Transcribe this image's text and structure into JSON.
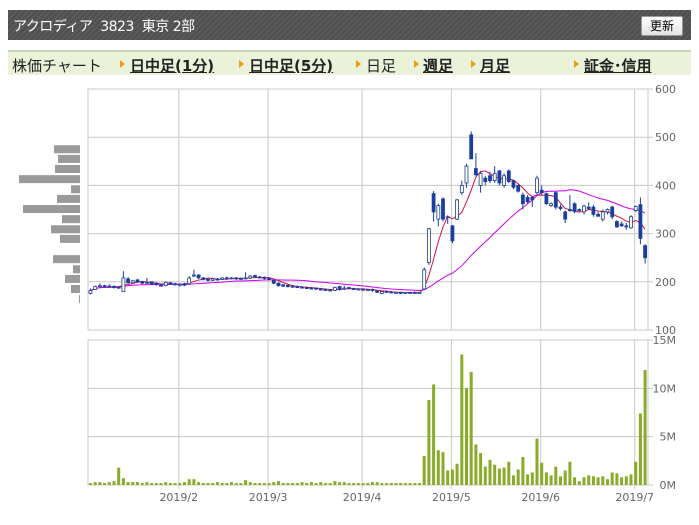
{
  "header": {
    "title": "アクロディア  3823  東京 2部",
    "refresh_label": "更新"
  },
  "nav": {
    "label": "株価チャート",
    "items": [
      {
        "label": "日中足(1分)",
        "link": true
      },
      {
        "label": "日中足(5分)",
        "link": true
      },
      {
        "label": "日足",
        "link": false
      },
      {
        "label": "週足",
        "link": true
      },
      {
        "label": "月足",
        "link": true
      },
      {
        "label": "証金･信用",
        "link": true
      }
    ]
  },
  "chart_data": {
    "type": "candlestick",
    "colors": {
      "candle": "#1a3f9e",
      "ma_short": "#e0103c",
      "ma_long": "#cc00ee",
      "volume": "#8aab2a",
      "grid": "#c8c8c8",
      "profile": "#9a9a9a"
    },
    "price_axis": {
      "min": 100,
      "max": 600,
      "ticks": [
        100,
        200,
        300,
        400,
        500,
        600
      ]
    },
    "volume_axis": {
      "min": 0,
      "max": 15,
      "ticks": [
        {
          "v": 0,
          "label": "0M"
        },
        {
          "v": 5,
          "label": "5M"
        },
        {
          "v": 10,
          "label": "10M"
        },
        {
          "v": 15,
          "label": "15M"
        }
      ]
    },
    "x_ticks": [
      {
        "label": "2019/2",
        "index": 19
      },
      {
        "label": "2019/3",
        "index": 38
      },
      {
        "label": "2019/4",
        "index": 58
      },
      {
        "label": "2019/5",
        "index": 77
      },
      {
        "label": "2019/6",
        "index": 96
      },
      {
        "label": "2019/7",
        "index": 116
      }
    ],
    "moving_averages": [
      {
        "period": 5,
        "color": "ma_short"
      },
      {
        "period": 25,
        "color": "ma_long"
      }
    ],
    "candles": [
      [
        176,
        186,
        174,
        182
      ],
      [
        184,
        192,
        183,
        190
      ],
      [
        190,
        197,
        188,
        192
      ],
      [
        192,
        194,
        188,
        190
      ],
      [
        191,
        195,
        188,
        190
      ],
      [
        190,
        193,
        186,
        189
      ],
      [
        189,
        191,
        185,
        187
      ],
      [
        180,
        222,
        180,
        208
      ],
      [
        206,
        210,
        196,
        198
      ],
      [
        198,
        204,
        196,
        202
      ],
      [
        204,
        206,
        198,
        200
      ],
      [
        200,
        202,
        195,
        197
      ],
      [
        199,
        208,
        196,
        198
      ],
      [
        200,
        201,
        194,
        195
      ],
      [
        197,
        199,
        192,
        195
      ],
      [
        193,
        196,
        190,
        192
      ],
      [
        192,
        201,
        191,
        199
      ],
      [
        198,
        200,
        194,
        196
      ],
      [
        196,
        198,
        192,
        194
      ],
      [
        193,
        197,
        190,
        195
      ],
      [
        196,
        198,
        191,
        193
      ],
      [
        196,
        212,
        194,
        208
      ],
      [
        212,
        225,
        210,
        214
      ],
      [
        214,
        216,
        206,
        208
      ],
      [
        208,
        210,
        203,
        205
      ],
      [
        205,
        207,
        201,
        203
      ],
      [
        203,
        208,
        202,
        206
      ],
      [
        206,
        208,
        202,
        205
      ],
      [
        205,
        210,
        204,
        208
      ],
      [
        208,
        211,
        204,
        207
      ],
      [
        207,
        210,
        205,
        208
      ],
      [
        208,
        210,
        204,
        207
      ],
      [
        207,
        209,
        204,
        206
      ],
      [
        206,
        220,
        205,
        208
      ],
      [
        208,
        214,
        206,
        212
      ],
      [
        213,
        215,
        208,
        210
      ],
      [
        210,
        212,
        207,
        209
      ],
      [
        209,
        211,
        205,
        208
      ],
      [
        207,
        209,
        203,
        205
      ],
      [
        203,
        204,
        195,
        197
      ],
      [
        197,
        199,
        190,
        192
      ],
      [
        194,
        195,
        189,
        191
      ],
      [
        193,
        194,
        188,
        190
      ],
      [
        191,
        193,
        187,
        190
      ],
      [
        190,
        192,
        187,
        189
      ],
      [
        189,
        191,
        186,
        188
      ],
      [
        188,
        190,
        185,
        187
      ],
      [
        187,
        189,
        184,
        186
      ],
      [
        187,
        188,
        183,
        185
      ],
      [
        185,
        187,
        182,
        184
      ],
      [
        184,
        186,
        181,
        183
      ],
      [
        183,
        185,
        180,
        182
      ],
      [
        182,
        190,
        181,
        188
      ],
      [
        190,
        192,
        182,
        184
      ],
      [
        185,
        192,
        183,
        187
      ],
      [
        188,
        190,
        185,
        186
      ],
      [
        186,
        188,
        184,
        185
      ],
      [
        185,
        187,
        183,
        185
      ],
      [
        185,
        186,
        181,
        183
      ],
      [
        183,
        185,
        181,
        184
      ],
      [
        184,
        186,
        180,
        182
      ],
      [
        181,
        183,
        177,
        178
      ],
      [
        176,
        182,
        175,
        180
      ],
      [
        180,
        182,
        178,
        179
      ],
      [
        179,
        181,
        176,
        177
      ],
      [
        178,
        180,
        176,
        178
      ],
      [
        178,
        179,
        175,
        177
      ],
      [
        176,
        179,
        175,
        178
      ],
      [
        178,
        179,
        176,
        177
      ],
      [
        178,
        180,
        176,
        177
      ],
      [
        177,
        179,
        175,
        178
      ],
      [
        185,
        230,
        183,
        225
      ],
      [
        240,
        312,
        235,
        310
      ],
      [
        383,
        388,
        325,
        345
      ],
      [
        330,
        362,
        315,
        358
      ],
      [
        372,
        375,
        325,
        330
      ],
      [
        333,
        338,
        320,
        335
      ],
      [
        316,
        318,
        280,
        285
      ],
      [
        330,
        372,
        328,
        370
      ],
      [
        385,
        410,
        380,
        400
      ],
      [
        405,
        445,
        395,
        440
      ],
      [
        505,
        512,
        455,
        455
      ],
      [
        435,
        467,
        420,
        422
      ],
      [
        400,
        430,
        385,
        425
      ],
      [
        415,
        420,
        400,
        408
      ],
      [
        420,
        428,
        405,
        410
      ],
      [
        410,
        440,
        405,
        425
      ],
      [
        430,
        432,
        400,
        405
      ],
      [
        400,
        425,
        395,
        420
      ],
      [
        430,
        433,
        405,
        408
      ],
      [
        410,
        412,
        392,
        396
      ],
      [
        400,
        402,
        385,
        388
      ],
      [
        380,
        385,
        350,
        362
      ],
      [
        375,
        380,
        362,
        366
      ],
      [
        375,
        378,
        355,
        370
      ],
      [
        385,
        420,
        380,
        415
      ],
      [
        390,
        400,
        380,
        385
      ],
      [
        383,
        385,
        360,
        362
      ],
      [
        358,
        365,
        355,
        362
      ],
      [
        385,
        388,
        350,
        355
      ],
      [
        355,
        360,
        348,
        352
      ],
      [
        345,
        348,
        322,
        330
      ],
      [
        350,
        380,
        345,
        348
      ],
      [
        362,
        365,
        342,
        346
      ],
      [
        350,
        352,
        344,
        348
      ],
      [
        345,
        360,
        340,
        357
      ],
      [
        355,
        365,
        350,
        352
      ],
      [
        355,
        360,
        335,
        340
      ],
      [
        340,
        345,
        335,
        336
      ],
      [
        330,
        350,
        325,
        345
      ],
      [
        345,
        352,
        340,
        350
      ],
      [
        355,
        358,
        330,
        335
      ],
      [
        325,
        328,
        312,
        314
      ],
      [
        320,
        325,
        314,
        316
      ],
      [
        316,
        322,
        308,
        315
      ],
      [
        312,
        338,
        310,
        335
      ],
      [
        348,
        358,
        345,
        356
      ],
      [
        360,
        375,
        278,
        290
      ],
      [
        275,
        278,
        238,
        250
      ]
    ],
    "volume_millions": [
      0.2,
      0.3,
      0.3,
      0.2,
      0.3,
      0.4,
      1.8,
      0.7,
      0.3,
      0.3,
      0.3,
      0.2,
      0.3,
      0.2,
      0.2,
      0.2,
      0.3,
      0.2,
      0.2,
      0.2,
      0.3,
      0.6,
      0.6,
      0.3,
      0.2,
      0.2,
      0.2,
      0.3,
      0.2,
      0.2,
      0.3,
      0.2,
      0.2,
      0.5,
      0.3,
      0.2,
      0.2,
      0.2,
      0.2,
      0.3,
      0.4,
      0.2,
      0.2,
      0.2,
      0.2,
      0.3,
      0.2,
      0.3,
      0.2,
      0.3,
      0.2,
      0.2,
      0.4,
      0.3,
      0.3,
      0.2,
      0.2,
      0.2,
      0.2,
      0.2,
      0.3,
      0.3,
      0.2,
      0.2,
      0.2,
      0.2,
      0.2,
      0.2,
      0.2,
      0.2,
      0.2,
      3.0,
      8.8,
      10.4,
      3.6,
      3.4,
      1.5,
      1.6,
      2.2,
      13.5,
      10.0,
      11.7,
      4.2,
      3.3,
      1.9,
      2.6,
      2.1,
      1.7,
      1.8,
      2.4,
      1.0,
      1.6,
      2.9,
      1.1,
      1.3,
      4.8,
      2.3,
      1.3,
      1.0,
      1.9,
      0.9,
      1.5,
      2.4,
      0.8,
      0.4,
      0.8,
      1.0,
      0.9,
      0.8,
      0.9,
      0.6,
      1.3,
      1.2,
      0.8,
      0.9,
      1.1,
      2.4,
      7.4,
      11.9
    ],
    "volume_profile": [
      {
        "price": 475,
        "rel": 26
      },
      {
        "price": 455,
        "rel": 22
      },
      {
        "price": 434,
        "rel": 25
      },
      {
        "price": 413,
        "rel": 61
      },
      {
        "price": 392,
        "rel": 9
      },
      {
        "price": 372,
        "rel": 23
      },
      {
        "price": 351,
        "rel": 57
      },
      {
        "price": 330,
        "rel": 18
      },
      {
        "price": 309,
        "rel": 29
      },
      {
        "price": 289,
        "rel": 20
      },
      {
        "price": 268,
        "rel": 0
      },
      {
        "price": 247,
        "rel": 27
      },
      {
        "price": 226,
        "rel": 7
      },
      {
        "price": 206,
        "rel": 15
      },
      {
        "price": 185,
        "rel": 9
      },
      {
        "price": 164,
        "rel": 1
      }
    ]
  }
}
